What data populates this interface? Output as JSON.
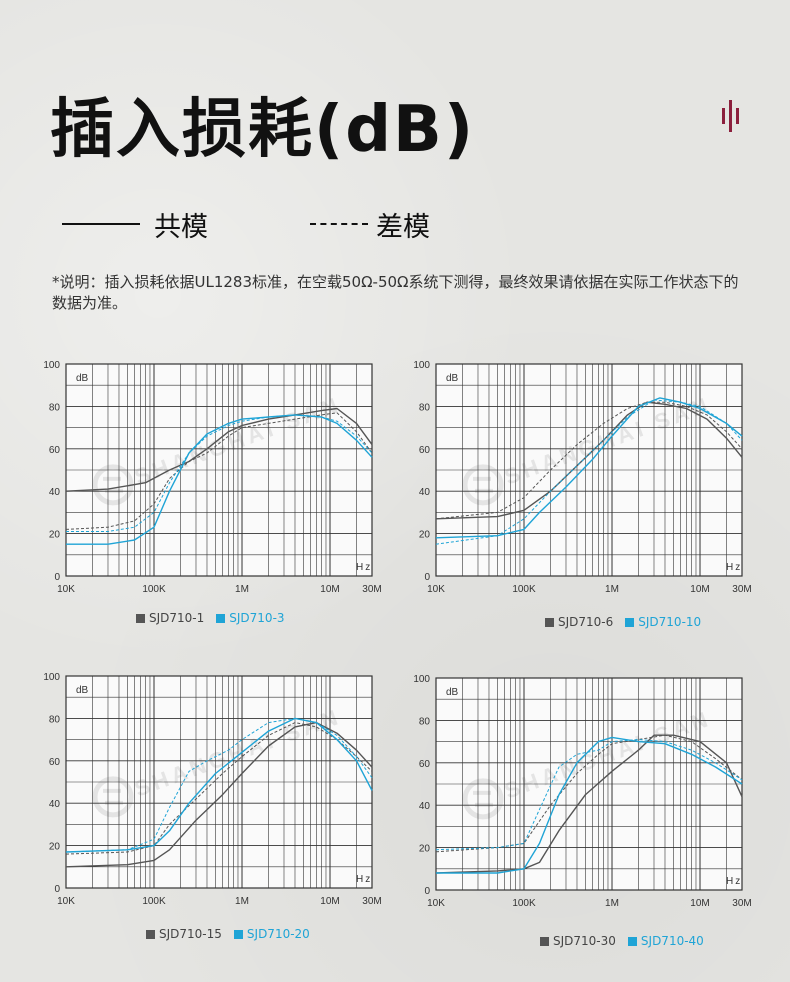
{
  "heading": "插入损耗(dB)",
  "legend": {
    "solid_label": "共模",
    "dash_label": "差模"
  },
  "note": "*说明：插入损耗依据UL1283标准，在空载50Ω-50Ω系统下测得，最终效果请依据在实际工作状态下的数据为准。",
  "colors": {
    "gray": "#555555",
    "blue": "#1fa4d6"
  },
  "watermark": "SHANGHAI SAN",
  "chart_data": [
    {
      "type": "line",
      "ylabel": "dB",
      "xlabel": "Hz",
      "yticks": [
        0,
        20,
        40,
        60,
        80,
        100
      ],
      "xticks": [
        "10K",
        "100K",
        "1M",
        "10M",
        "30M"
      ],
      "ylim": [
        0,
        100
      ],
      "xlim_hz": [
        10000,
        30000000
      ],
      "xscale": "log",
      "legend": [
        {
          "name": "SJD710-1",
          "color": "#555555"
        },
        {
          "name": "SJD710-3",
          "color": "#1fa4d6"
        }
      ],
      "series": [
        {
          "name": "SJD710-1 共模",
          "color": "#555555",
          "style": "solid",
          "x": [
            10000,
            30000,
            80000,
            150000,
            250000,
            400000,
            700000,
            1000000,
            2000000,
            4000000,
            8000000,
            12000000,
            20000000,
            30000000
          ],
          "y": [
            40,
            41,
            44,
            50,
            54,
            60,
            68,
            71,
            74,
            76,
            78,
            79,
            72,
            62
          ]
        },
        {
          "name": "SJD710-1 差模",
          "color": "#555555",
          "style": "dash",
          "x": [
            10000,
            30000,
            60000,
            100000,
            150000,
            250000,
            400000,
            700000,
            1000000,
            2000000,
            4000000,
            8000000,
            12000000,
            20000000,
            30000000
          ],
          "y": [
            22,
            23,
            26,
            34,
            46,
            54,
            58,
            66,
            70,
            72,
            74,
            76,
            77,
            68,
            58
          ]
        },
        {
          "name": "SJD710-3 共模",
          "color": "#1fa4d6",
          "style": "solid",
          "x": [
            10000,
            30000,
            60000,
            100000,
            150000,
            250000,
            400000,
            700000,
            1000000,
            2000000,
            4000000,
            8000000,
            12000000,
            20000000,
            30000000
          ],
          "y": [
            15,
            15,
            17,
            23,
            40,
            58,
            67,
            72,
            74,
            75,
            76,
            75,
            72,
            64,
            56
          ]
        },
        {
          "name": "SJD710-3 差模",
          "color": "#1fa4d6",
          "style": "dash",
          "x": [
            10000,
            30000,
            60000,
            100000,
            150000,
            250000,
            400000,
            700000,
            1000000,
            2000000,
            4000000,
            8000000,
            12000000,
            20000000,
            30000000
          ],
          "y": [
            21,
            21,
            23,
            30,
            44,
            58,
            66,
            71,
            73,
            75,
            76,
            75,
            73,
            66,
            58
          ]
        }
      ]
    },
    {
      "type": "line",
      "ylabel": "dB",
      "xlabel": "Hz",
      "yticks": [
        0,
        20,
        40,
        60,
        80,
        100
      ],
      "xticks": [
        "10K",
        "100K",
        "1M",
        "10M",
        "30M"
      ],
      "ylim": [
        0,
        100
      ],
      "xlim_hz": [
        10000,
        30000000
      ],
      "xscale": "log",
      "legend": [
        {
          "name": "SJD710-6",
          "color": "#555555"
        },
        {
          "name": "SJD710-10",
          "color": "#1fa4d6"
        }
      ],
      "series": [
        {
          "name": "SJD710-6 共模",
          "color": "#555555",
          "style": "solid",
          "x": [
            10000,
            50000,
            100000,
            200000,
            400000,
            800000,
            1500000,
            2500000,
            4000000,
            7000000,
            12000000,
            20000000,
            30000000
          ],
          "y": [
            27,
            28,
            31,
            40,
            52,
            64,
            76,
            82,
            81,
            79,
            74,
            65,
            56
          ]
        },
        {
          "name": "SJD710-6 差模",
          "color": "#555555",
          "style": "dash",
          "x": [
            10000,
            50000,
            100000,
            200000,
            400000,
            800000,
            1500000,
            2500000,
            4000000,
            7000000,
            12000000,
            20000000,
            30000000
          ],
          "y": [
            27,
            30,
            37,
            50,
            62,
            72,
            79,
            82,
            82,
            80,
            76,
            68,
            60
          ]
        },
        {
          "name": "SJD710-10 共模",
          "color": "#1fa4d6",
          "style": "solid",
          "x": [
            10000,
            50000,
            100000,
            150000,
            300000,
            600000,
            1000000,
            2000000,
            3500000,
            6000000,
            10000000,
            20000000,
            30000000
          ],
          "y": [
            18,
            19,
            22,
            30,
            42,
            55,
            66,
            80,
            84,
            82,
            79,
            72,
            66
          ]
        },
        {
          "name": "SJD710-10 差模",
          "color": "#1fa4d6",
          "style": "dash",
          "x": [
            10000,
            50000,
            100000,
            200000,
            400000,
            800000,
            1500000,
            3000000,
            6000000,
            10000000,
            20000000,
            30000000
          ],
          "y": [
            15,
            19,
            27,
            40,
            52,
            64,
            75,
            83,
            82,
            80,
            72,
            64
          ]
        }
      ]
    },
    {
      "type": "line",
      "ylabel": "dB",
      "xlabel": "Hz",
      "yticks": [
        0,
        20,
        40,
        60,
        80,
        100
      ],
      "xticks": [
        "10K",
        "100K",
        "1M",
        "10M",
        "30M"
      ],
      "ylim": [
        0,
        100
      ],
      "xlim_hz": [
        10000,
        30000000
      ],
      "xscale": "log",
      "legend": [
        {
          "name": "SJD710-15",
          "color": "#555555"
        },
        {
          "name": "SJD710-20",
          "color": "#1fa4d6"
        }
      ],
      "series": [
        {
          "name": "SJD710-15 共模",
          "color": "#555555",
          "style": "solid",
          "x": [
            10000,
            50000,
            100000,
            150000,
            300000,
            600000,
            1000000,
            2000000,
            4000000,
            7000000,
            12000000,
            20000000,
            30000000
          ],
          "y": [
            10,
            11,
            13,
            18,
            32,
            44,
            54,
            67,
            76,
            78,
            73,
            65,
            57
          ]
        },
        {
          "name": "SJD710-15 差模",
          "color": "#555555",
          "style": "dash",
          "x": [
            10000,
            50000,
            100000,
            150000,
            300000,
            600000,
            1000000,
            2000000,
            4000000,
            7000000,
            12000000,
            20000000,
            30000000
          ],
          "y": [
            16,
            17,
            20,
            30,
            42,
            54,
            62,
            72,
            78,
            76,
            70,
            62,
            55
          ]
        },
        {
          "name": "SJD710-20 共模",
          "color": "#1fa4d6",
          "style": "solid",
          "x": [
            10000,
            50000,
            100000,
            150000,
            250000,
            500000,
            1000000,
            2000000,
            4000000,
            7000000,
            12000000,
            20000000,
            30000000
          ],
          "y": [
            17,
            18,
            20,
            27,
            40,
            54,
            64,
            74,
            80,
            78,
            70,
            60,
            46
          ]
        },
        {
          "name": "SJD710-20 差模",
          "color": "#1fa4d6",
          "style": "dash",
          "x": [
            10000,
            50000,
            100000,
            150000,
            250000,
            400000,
            700000,
            1000000,
            2000000,
            4000000,
            7000000,
            12000000,
            20000000,
            30000000
          ],
          "y": [
            17,
            18,
            23,
            38,
            55,
            60,
            65,
            70,
            78,
            80,
            78,
            72,
            62,
            52
          ]
        }
      ]
    },
    {
      "type": "line",
      "ylabel": "dB",
      "xlabel": "Hz",
      "yticks": [
        0,
        20,
        40,
        60,
        80,
        100
      ],
      "xticks": [
        "10K",
        "100K",
        "1M",
        "10M",
        "30M"
      ],
      "ylim": [
        0,
        100
      ],
      "xlim_hz": [
        10000,
        30000000
      ],
      "xscale": "log",
      "legend": [
        {
          "name": "SJD710-30",
          "color": "#555555"
        },
        {
          "name": "SJD710-40",
          "color": "#1fa4d6"
        }
      ],
      "series": [
        {
          "name": "SJD710-30 共模",
          "color": "#555555",
          "style": "solid",
          "x": [
            10000,
            50000,
            100000,
            150000,
            250000,
            500000,
            1000000,
            2000000,
            3000000,
            5000000,
            10000000,
            20000000,
            30000000
          ],
          "y": [
            8,
            9,
            10,
            13,
            28,
            45,
            56,
            66,
            73,
            73,
            70,
            60,
            44
          ]
        },
        {
          "name": "SJD710-30 差模",
          "color": "#555555",
          "style": "dash",
          "x": [
            10000,
            50000,
            100000,
            200000,
            400000,
            700000,
            1000000,
            2000000,
            4000000,
            8000000,
            15000000,
            30000000
          ],
          "y": [
            18,
            20,
            22,
            40,
            55,
            64,
            69,
            71,
            73,
            70,
            62,
            52
          ]
        },
        {
          "name": "SJD710-40 共模",
          "color": "#1fa4d6",
          "style": "solid",
          "x": [
            10000,
            50000,
            100000,
            150000,
            250000,
            400000,
            700000,
            1000000,
            2000000,
            4000000,
            8000000,
            15000000,
            30000000
          ],
          "y": [
            8,
            8,
            10,
            22,
            45,
            60,
            70,
            72,
            70,
            69,
            64,
            58,
            50
          ]
        },
        {
          "name": "SJD710-40 差模",
          "color": "#1fa4d6",
          "style": "dash",
          "x": [
            10000,
            50000,
            100000,
            150000,
            250000,
            400000,
            700000,
            1000000,
            2000000,
            4000000,
            8000000,
            15000000,
            30000000
          ],
          "y": [
            19,
            20,
            22,
            38,
            58,
            64,
            66,
            70,
            71,
            70,
            66,
            60,
            52
          ]
        }
      ]
    }
  ]
}
